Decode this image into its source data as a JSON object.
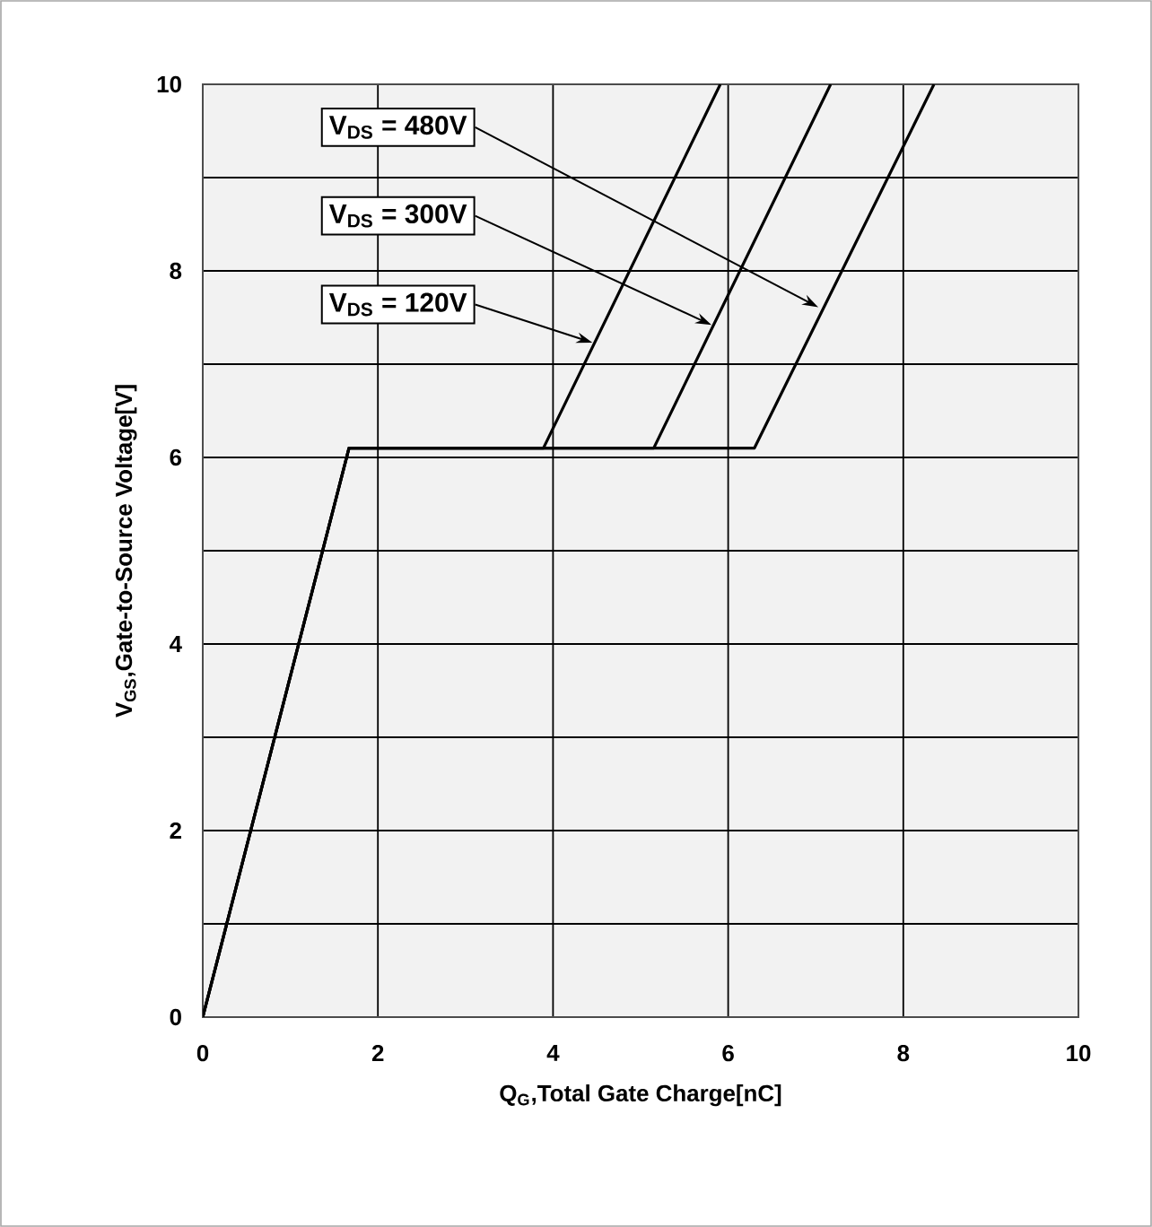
{
  "chart_data": {
    "type": "line",
    "xlabel": "Q$_{G}$,Total Gate Charge[nC]",
    "ylabel": "V$_{GS}$,Gate-to-Source Voltage[V]",
    "xlim": [
      0,
      10
    ],
    "ylim": [
      0,
      10
    ],
    "xticks": [
      0,
      2,
      4,
      6,
      8,
      10
    ],
    "yticks": [
      0,
      {
        "value": 1,
        "label": null
      },
      2,
      {
        "value": 3,
        "label": null
      },
      4,
      {
        "value": 5,
        "label": null
      },
      6,
      {
        "value": 7,
        "label": null
      },
      8,
      {
        "value": 9,
        "label": null
      },
      10
    ],
    "grid": true,
    "marker": "none",
    "line_style": "solid",
    "series": [
      {
        "color": "#000000",
        "x": [
          0,
          1.67,
          3.89,
          5.91
        ],
        "values": [
          0,
          6.1,
          6.1,
          10
        ]
      },
      {
        "color": "#000000",
        "x": [
          0,
          1.67,
          5.15,
          7.17
        ],
        "values": [
          0,
          6.1,
          6.1,
          10
        ]
      },
      {
        "color": "#000000",
        "x": [
          0,
          1.67,
          6.3,
          8.35
        ],
        "values": [
          0,
          6.1,
          6.1,
          10
        ]
      }
    ],
    "annotations": [
      {
        "text": "V$_{DS}$ = 480V",
        "x": 7.03,
        "y": 7.61
      },
      {
        "text": "V$_{DS}$ = 300V",
        "x": 5.81,
        "y": 7.42
      },
      {
        "text": "V$_{DS}$ = 120V",
        "x": 4.45,
        "y": 7.23
      }
    ]
  }
}
